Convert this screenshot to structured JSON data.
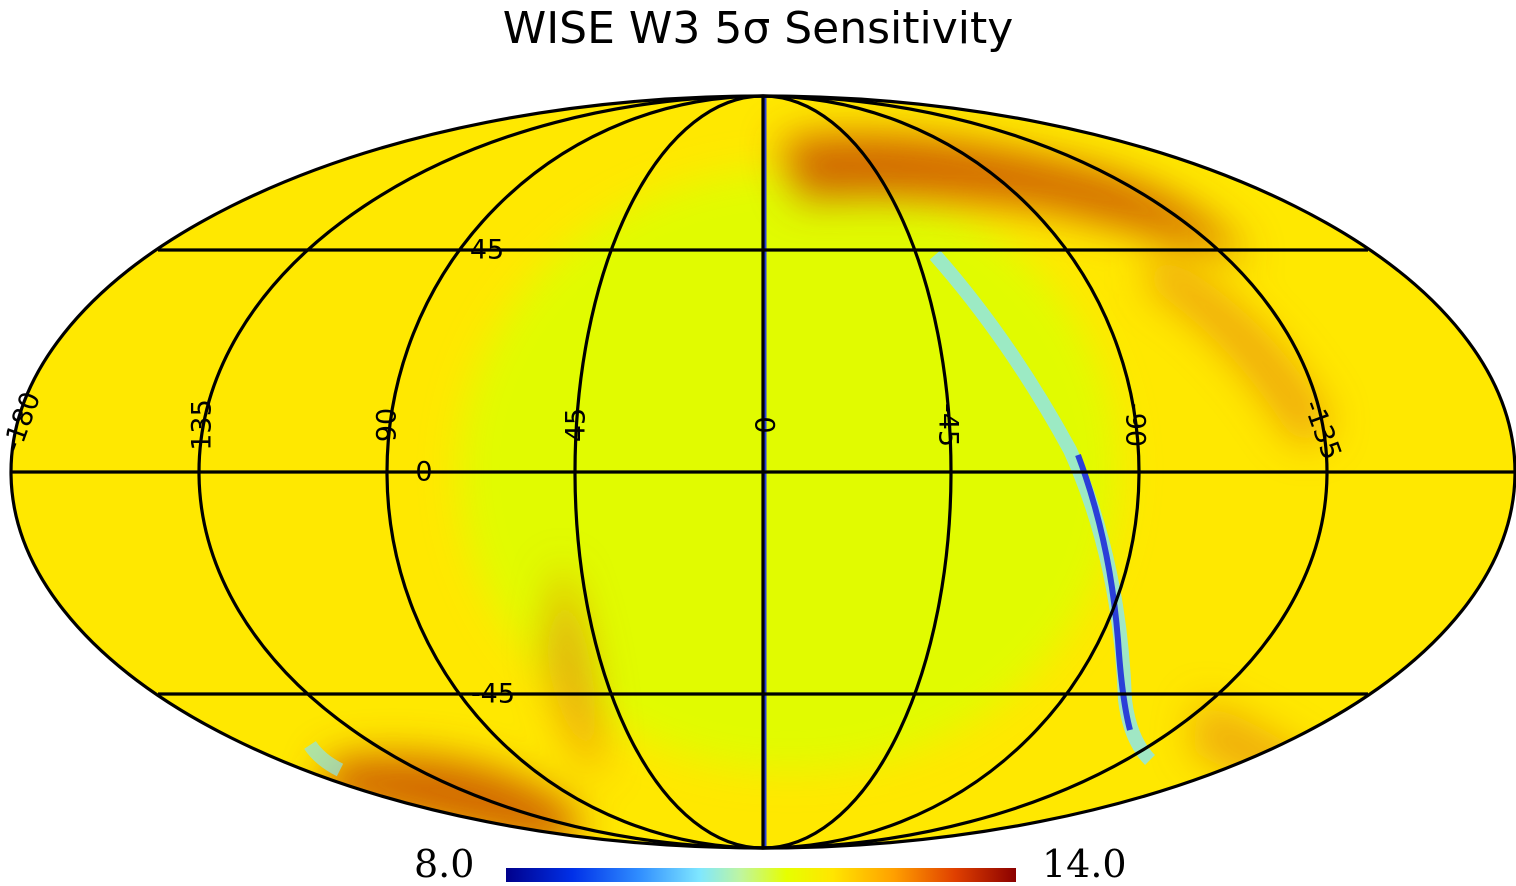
{
  "title": "WISE W3 5σ Sensitivity",
  "map": {
    "projection": "mollweide",
    "coordinates": "galactic",
    "longitude_labels": [
      "-180",
      "135",
      "90",
      "45",
      "0",
      "-45",
      "-90",
      "-135"
    ],
    "latitude_labels": [
      "45",
      "0",
      "-45"
    ],
    "colors": {
      "base": "#ffe800",
      "center_low": "#dcff00",
      "high": "#e27a10",
      "very_high": "#c95000",
      "low": "#8fe6e6",
      "very_low": "#2a3fd8"
    }
  },
  "colorbar": {
    "min_label": "8.0",
    "max_label": "14.0",
    "min": 8.0,
    "max": 14.0,
    "colormap": "rainbow"
  }
}
